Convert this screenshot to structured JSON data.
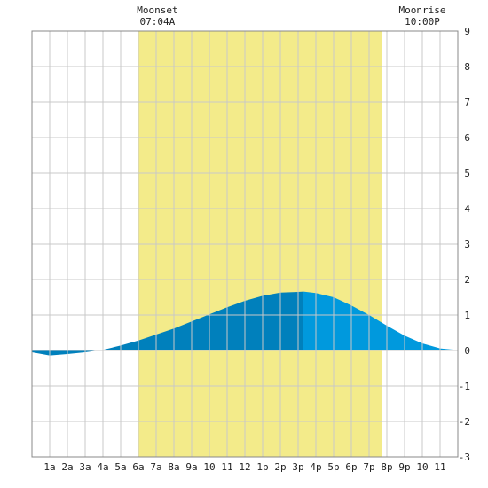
{
  "chart_data": {
    "type": "area",
    "title": "",
    "xlabel": "",
    "ylabel": "",
    "xlim": [
      0,
      24
    ],
    "ylim": [
      -3,
      9
    ],
    "grid": true,
    "x_tick_labels": [
      "1a",
      "2a",
      "3a",
      "4a",
      "5a",
      "6a",
      "7a",
      "8a",
      "9a",
      "10",
      "11",
      "12",
      "1p",
      "2p",
      "3p",
      "4p",
      "5p",
      "6p",
      "7p",
      "8p",
      "9p",
      "10",
      "11"
    ],
    "y_ticks": [
      -3,
      -2,
      -1,
      0,
      1,
      2,
      3,
      4,
      5,
      6,
      7,
      8,
      9
    ],
    "daylight": {
      "start": 6.0,
      "end": 19.7,
      "color": "#f3eb8a"
    },
    "annotations": [
      {
        "label": "Moonset",
        "time": "07:04A",
        "x": 7.07
      },
      {
        "label": "Moonrise",
        "time": "10:00P",
        "x": 22.0
      }
    ],
    "colors": {
      "dark": "#0080bc",
      "light": "#0099dd",
      "grid": "#c8c8c8"
    },
    "series": [
      {
        "x": [
          0,
          1,
          2,
          3,
          4,
          5,
          6,
          7,
          8,
          9,
          10,
          11,
          12,
          13,
          14,
          15,
          15.3,
          16,
          17,
          18,
          19,
          20,
          21,
          22,
          23,
          24
        ],
        "values": [
          -0.05,
          -0.14,
          -0.1,
          -0.05,
          0.02,
          0.14,
          0.28,
          0.45,
          0.62,
          0.82,
          1.02,
          1.22,
          1.4,
          1.54,
          1.63,
          1.65,
          1.66,
          1.62,
          1.5,
          1.27,
          1.0,
          0.7,
          0.42,
          0.2,
          0.06,
          0.01
        ]
      }
    ]
  }
}
